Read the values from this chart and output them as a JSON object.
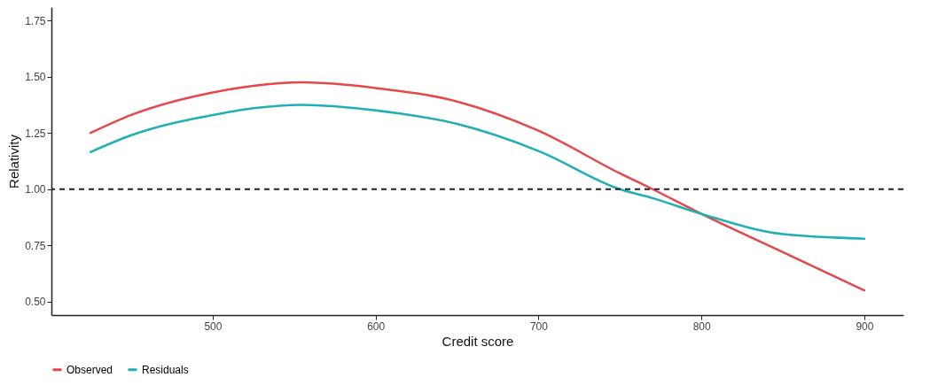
{
  "chart_data": {
    "type": "line",
    "xlabel": "Credit score",
    "ylabel": "Relativity",
    "xlim": [
      401,
      924
    ],
    "xticks": [
      500,
      600,
      700,
      800,
      900
    ],
    "ylim": [
      0.44,
      1.81
    ],
    "yticks": [
      {
        "value": 0.5,
        "label": "0.50"
      },
      0.75,
      {
        "value": 1,
        "label": "1.00"
      },
      1.25,
      {
        "value": 1.5,
        "label": "1.50"
      },
      1.75
    ],
    "x": [
      425,
      450,
      500,
      525,
      555,
      600,
      650,
      700,
      750,
      770,
      800,
      850,
      900
    ],
    "series": [
      {
        "name": "Observed",
        "color": "#e5474a",
        "values": [
          1.25,
          1.33,
          1.43,
          1.46,
          1.475,
          1.45,
          1.39,
          1.26,
          1.07,
          1.0,
          0.89,
          0.72,
          0.55
        ]
      },
      {
        "name": "Residuals",
        "color": "#1fb0b4",
        "values": [
          1.165,
          1.24,
          1.33,
          1.36,
          1.375,
          1.35,
          1.29,
          1.17,
          1.0,
          0.96,
          0.89,
          0.8,
          0.78
        ]
      }
    ],
    "ref_lines": [
      {
        "axis": "y",
        "value": 1,
        "line_style": "dashed",
        "color": "#222222"
      }
    ],
    "grid": false,
    "legend": "bottom",
    "line_style": "solid"
  }
}
